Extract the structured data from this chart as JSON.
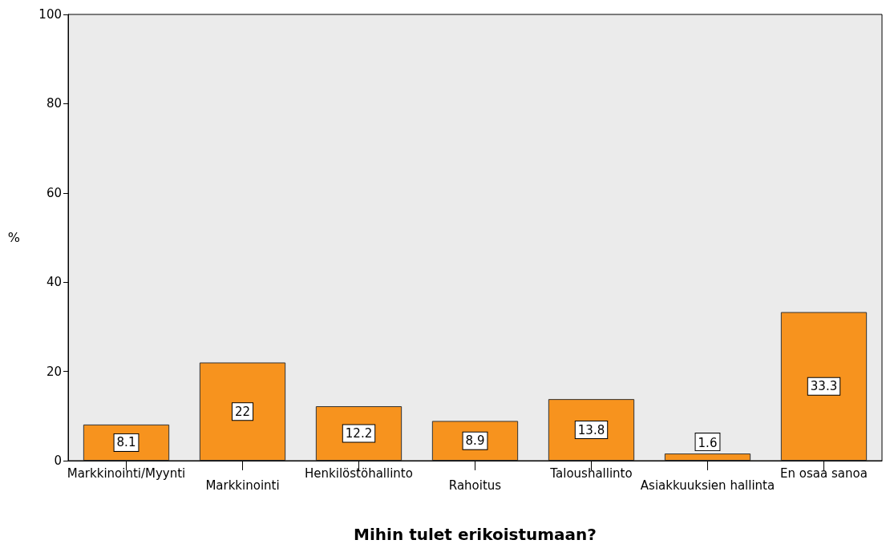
{
  "chart_data": {
    "type": "bar",
    "xlabel": "Mihin tulet erikoistumaan?",
    "ylabel": "%",
    "categories": [
      "Markkinointi/Myynti",
      "Markkinointi",
      "Henkilöstöhallinto",
      "Rahoitus",
      "Taloushallinto",
      "Asiakkuuksien hallinta",
      "En osaa sanoa"
    ],
    "values": [
      8.1,
      22,
      12.2,
      8.9,
      13.8,
      1.6,
      33.3
    ],
    "color": "#f7931e",
    "ylim": [
      0,
      100
    ],
    "yticks": [
      0,
      20,
      40,
      60,
      80,
      100
    ],
    "grid": false,
    "data_labels": true
  }
}
